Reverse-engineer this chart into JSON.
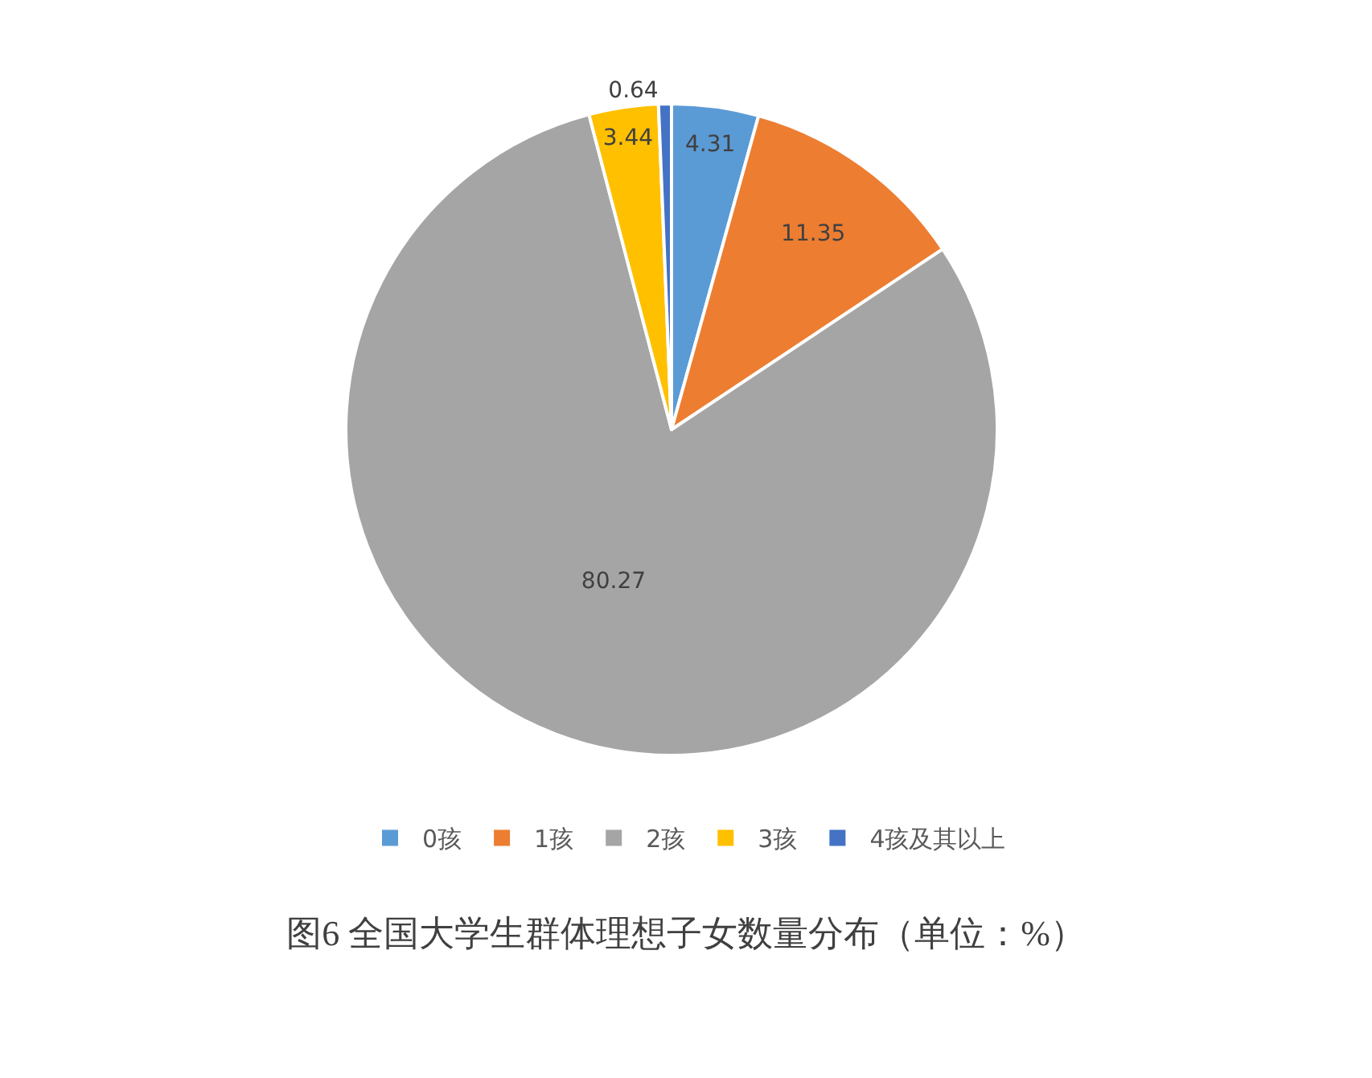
{
  "chart_data": {
    "type": "pie",
    "title": "图6 全国大学生群体理想子女数量分布（单位：%）",
    "categories": [
      "0孩",
      "1孩",
      "2孩",
      "3孩",
      "4孩及其以上"
    ],
    "values": [
      4.31,
      11.35,
      80.27,
      3.44,
      0.64
    ],
    "colors": [
      "#5b9bd5",
      "#ed7d31",
      "#a5a5a5",
      "#ffc000",
      "#4472c4"
    ],
    "data_labels": true,
    "legend": "bottom"
  }
}
